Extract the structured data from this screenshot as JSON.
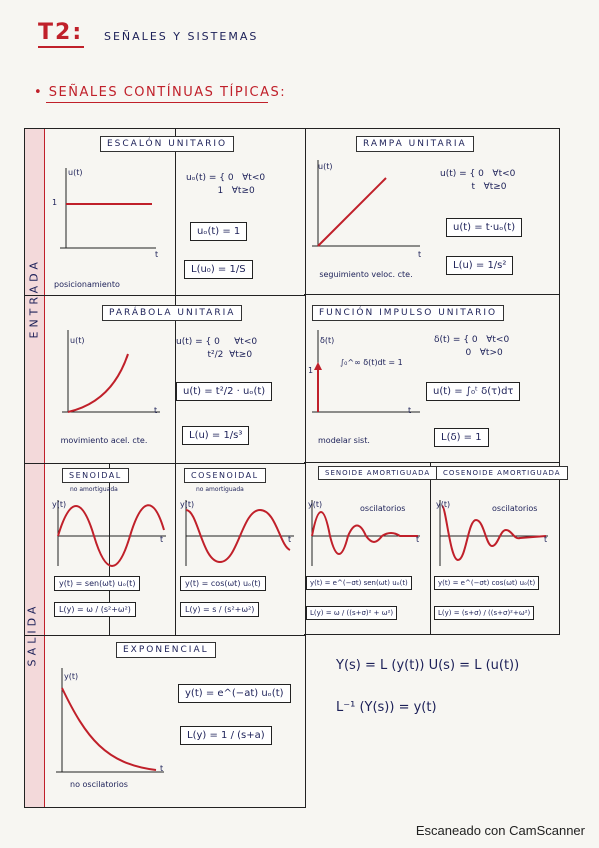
{
  "header": {
    "title": "T2:",
    "subtitle": "SEÑALES Y SISTEMAS",
    "section": "• SEÑALES CONTÍNUAS TÍPICAS:"
  },
  "side_labels": {
    "entrada": "ENTRADA",
    "salida": "SALIDA"
  },
  "cells": {
    "escalon": {
      "title": "ESCALÓN UNITARIO",
      "axis_y": "u(t)",
      "axis_x": "t",
      "level": "1",
      "definition": "uₒ(t) = { 0   ∀t<0\n           1   ∀t≥0",
      "box1": "uₒ(t) = 1",
      "box2": "L(u₀) = 1/S",
      "note": "posicionamiento"
    },
    "rampa": {
      "title": "RAMPA UNITARIA",
      "axis_y": "u(t)",
      "axis_x": "t",
      "definition": "u(t) = { 0   ∀t<0\n           t   ∀t≥0",
      "box1": "u(t) = t·uₒ(t)",
      "box2": "L(u) = 1/s²",
      "note": "seguimiento veloc. cte."
    },
    "parabola": {
      "title": "PARÁBOLA UNITARIA",
      "axis_y": "u(t)",
      "axis_x": "t",
      "definition": "u(t) = { 0     ∀t<0\n           t²/2  ∀t≥0",
      "box1": "u(t) = t²/2 · uₒ(t)",
      "box2": "L(u) = 1/s³",
      "note": "movimiento acel. cte."
    },
    "impulso": {
      "title": "FUNCIÓN IMPULSO UNITARIO",
      "axis_y": "δ(t)",
      "axis_x": "t",
      "integral": "∫₀^∞ δ(t)dt = 1",
      "marker": "1",
      "definition": "δ(t) = { 0   ∀t<0\n           0   ∀t>0",
      "box1": "u(t) = ∫₀ᵗ δ(τ)dτ",
      "box2": "L(δ) = 1",
      "note": "modelar sist."
    },
    "senoidal": {
      "title": "SENOIDAL",
      "sub": "no amortiguada",
      "axis_y": "y(t)",
      "axis_x": "t",
      "box1": "y(t) = sen(ωt) uₒ(t)",
      "box2": "L(y) = ω / (s²+ω²)"
    },
    "cosenoidal": {
      "title": "COSENOIDAL",
      "sub": "no amortiguada",
      "axis_y": "y(t)",
      "axis_x": "t",
      "box1": "y(t) = cos(ωt) uₒ(t)",
      "box2": "L(y) = s / (s²+ω²)"
    },
    "seno_amort": {
      "title": "SENOIDE AMORTIGUADA",
      "axis_y": "y(t)",
      "axis_x": "t",
      "note": "oscilatorios",
      "box1": "y(t) = e^(−σt) sen(ωt) uₒ(t)",
      "box2": "L(y) = ω / ((s+σ)² + ω²)"
    },
    "coseno_amort": {
      "title": "COSENOIDE AMORTIGUADA",
      "axis_y": "y(t)",
      "axis_x": "t",
      "note": "oscilatorios",
      "box1": "y(t) = e^(−σt) cos(ωt) uₒ(t)",
      "box2": "L(y) = (s+σ) / ((s+σ)²+ω²)"
    },
    "exponencial": {
      "title": "EXPONENCIAL",
      "axis_y": "y(t)",
      "axis_x": "t",
      "box1": "y(t) = e^(−at) uₒ(t)",
      "box2": "L(y) = 1 / (s+a)",
      "note": "no oscilatorios"
    }
  },
  "relations": {
    "line1": "Y(s) = L (y(t))    U(s) = L (u(t))",
    "line2": "L⁻¹ (Y(s)) = y(t)"
  },
  "footer": "Escaneado con CamScanner"
}
